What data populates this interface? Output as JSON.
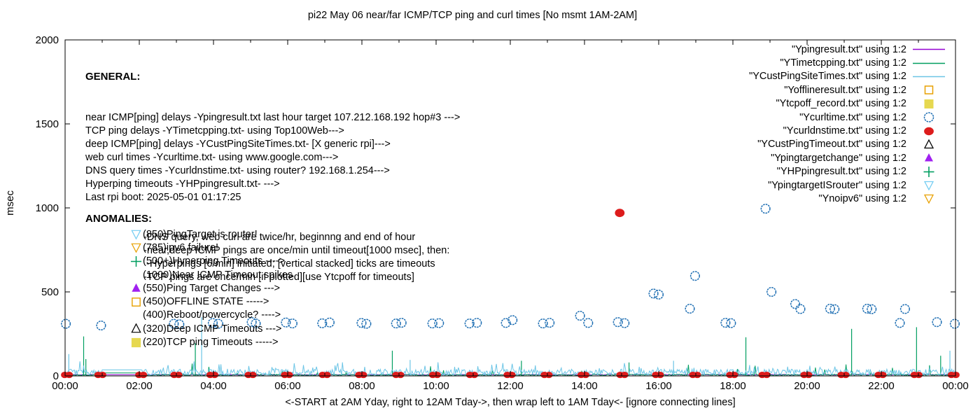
{
  "title": "pi22 May 06  near/far ICMP/TCP ping and curl times [No msmt 1AM-2AM]",
  "axes": {
    "y_label": "msec",
    "x_label": "<-START at 2AM Yday, right to 12AM Tday->, then wrap left to 1AM Tday<- [ignore connecting lines]",
    "y_ticks": [
      "0",
      "500",
      "1000",
      "1500",
      "2000"
    ],
    "y_tick_values": [
      0,
      500,
      1000,
      1500,
      2000
    ],
    "x_ticks": [
      "00:00",
      "02:00",
      "04:00",
      "06:00",
      "08:00",
      "10:00",
      "12:00",
      "14:00",
      "16:00",
      "18:00",
      "20:00",
      "22:00",
      "00:00"
    ],
    "x_tick_hours": [
      0,
      2,
      4,
      6,
      8,
      10,
      12,
      14,
      16,
      18,
      20,
      22,
      24
    ]
  },
  "general": {
    "heading": "GENERAL:",
    "lines": [
      "near ICMP[ping] delays -Ypingresult.txt last hour target 107.212.168.192 hop#3 --->",
      "TCP ping delays -YTimetcpping.txt- using Top100Web--->",
      "deep ICMP[ping] delays -YCustPingSiteTimes.txt- [X generic rpi]--->",
      "web curl times -Ycurltime.txt- using www.google.com--->",
      "DNS query times -Ycurldnstime.txt- using router? 192.168.1.254--->",
      "Hyperping timeouts -YHPpingresult.txt- --->",
      "Last rpi boot: 2025-05-01 01:17:25"
    ],
    "sub_lines": [
      "-DNS query, web curl are twice/hr, beginnng and end of hour",
      "-near,deep ICMP pings are once/min until timeout[1000 msec], then:",
      " -Hyperpings [6/min] initiated; [vertical stacked] ticks are timeouts",
      "-TCP pings are once/min [if plotted][use Ytcpoff for timeouts]"
    ]
  },
  "anomalies": {
    "heading": "ANOMALIES:",
    "items": [
      {
        "marker": "tri-down-open",
        "color": "#74cdf2",
        "value": 850,
        "label": "(850)PingTarget is router!"
      },
      {
        "marker": "tri-down-open",
        "color": "#e8a000",
        "value": 785,
        "label": "(785)ipv6 failure!"
      },
      {
        "marker": "plus",
        "color": "#009e60",
        "value": 500,
        "label": "(500+)Hyperping Timeouts ---->"
      },
      {
        "marker": "none",
        "color": "",
        "value": 1000,
        "label": "(1000)Near ICMP Timeout spikes"
      },
      {
        "marker": "tri-up-filled",
        "color": "#a020f0",
        "value": 550,
        "label": "(550)Ping Target Changes --->"
      },
      {
        "marker": "square-open",
        "color": "#e8a000",
        "value": 450,
        "label": "(450)OFFLINE STATE ----->"
      },
      {
        "marker": "none",
        "color": "",
        "value": 400,
        "label": "(400)Reboot/powercycle? ---->"
      },
      {
        "marker": "tri-up-open",
        "color": "#000000",
        "value": 320,
        "label": "(320)Deep ICMP Timeouts --->"
      },
      {
        "marker": "square-filled",
        "color": "#e6d850",
        "value": 220,
        "label": "(220)TCP ping Timeouts ----->"
      }
    ]
  },
  "legend": [
    {
      "label": "\"Ypingresult.txt\" using 1:2",
      "marker": "line",
      "color": "#9400d3"
    },
    {
      "label": "\"YTimetcpping.txt\" using 1:2",
      "marker": "line",
      "color": "#009e60"
    },
    {
      "label": "\"YCustPingSiteTimes.txt\" using 1:2",
      "marker": "line",
      "color": "#6cc5e6"
    },
    {
      "label": "\"Yofflineresult.txt\" using 1:2",
      "marker": "square-open",
      "color": "#e8a000"
    },
    {
      "label": "\"Ytcpoff_record.txt\" using 1:2",
      "marker": "square-filled",
      "color": "#e6d850"
    },
    {
      "label": "\"Ycurltime.txt\" using 1:2",
      "marker": "circle-open",
      "color": "#1c6db2"
    },
    {
      "label": "\"Ycurldnstime.txt\" using 1:2",
      "marker": "circle-filled",
      "color": "#dd1c1c"
    },
    {
      "label": "\"YCustPingTimeout.txt\" using 1:2",
      "marker": "tri-up-open",
      "color": "#000000"
    },
    {
      "label": "\"Ypingtargetchange\" using 1:2",
      "marker": "tri-up-filled",
      "color": "#a020f0"
    },
    {
      "label": "\"YHPpingresult.txt\" using 1:2",
      "marker": "plus",
      "color": "#009e60"
    },
    {
      "label": "\"YpingtargetISrouter\" using 1:2",
      "marker": "tri-down-open",
      "color": "#74cdf2"
    },
    {
      "label": "\"Ynoipv6\" using 1:2",
      "marker": "tri-down-open",
      "color": "#e8a000"
    }
  ],
  "colors": {
    "background": "#ffffff",
    "axis": "#000000",
    "curl_blue": "#1c6db2",
    "dns_red": "#dd1c1c",
    "custping_lightblue": "#6cc5e6",
    "tcp_green": "#009e60",
    "ping_purple": "#9400d3",
    "target_change_magenta": "#a020f0",
    "offline_orange": "#e8a000",
    "tcpoff_yellow": "#e6d850",
    "isrouter_cyan": "#74cdf2"
  },
  "chart_data": {
    "type": "line+scatter",
    "title": "pi22 May 06  near/far ICMP/TCP ping and curl times [No msmt 1AM-2AM]",
    "xlabel": "<-START at 2AM Yday, right to 12AM Tday->, then wrap left to 1AM Tday<- [ignore connecting lines]",
    "ylabel": "msec",
    "xlim_hours": [
      0,
      24
    ],
    "ylim": [
      0,
      2000
    ],
    "grid": false,
    "legend_position": "top-right",
    "no_measurement_gap_hours": [
      1.0,
      2.05
    ],
    "series": [
      {
        "name": "Ypingresult.txt",
        "type": "noise",
        "color": "#9400d3",
        "base": [
          5,
          9
        ],
        "burst_chance": 0,
        "burst_max": 0,
        "spikes": [],
        "gap_value": 7
      },
      {
        "name": "YTimetcpping.txt",
        "type": "noise",
        "color": "#009e60",
        "base": [
          2,
          10
        ],
        "burst_chance": 0.04,
        "burst_max": 70,
        "spikes": [
          [
            0.5,
            235
          ],
          [
            0.56,
            100
          ],
          [
            3.51,
            195
          ],
          [
            8.82,
            150
          ],
          [
            12.3,
            90
          ],
          [
            15.2,
            80
          ],
          [
            18.35,
            230
          ],
          [
            21.2,
            280
          ],
          [
            22.95,
            290
          ],
          [
            23.6,
            120
          ]
        ],
        "gap_value": 18
      },
      {
        "name": "YCustPingSiteTimes.txt",
        "type": "noise",
        "color": "#6cc5e6",
        "base": [
          3,
          40
        ],
        "burst_chance": 0.06,
        "burst_max": 55,
        "spikes": [
          [
            0.1,
            130
          ],
          [
            3.68,
            350
          ],
          [
            9.3,
            95
          ],
          [
            16.4,
            90
          ],
          [
            23.85,
            150
          ]
        ],
        "gap_value": 36
      },
      {
        "name": "Ycurldnstime.txt",
        "type": "scatter",
        "marker": "circle-filled",
        "color": "#dd1c1c",
        "cluster_value": 6,
        "cluster_hours": [
          0.05,
          0.95,
          2.05,
          3.0,
          3.97,
          5.0,
          5.98,
          7.0,
          7.98,
          8.98,
          9.97,
          10.97,
          11.98,
          12.98,
          13.97,
          15.02,
          15.98,
          16.98,
          17.98,
          18.85,
          19.98,
          20.98,
          21.98,
          22.95,
          23.95
        ],
        "outliers": [
          [
            14.95,
            970
          ]
        ]
      },
      {
        "name": "Ycurltime.txt",
        "type": "scatter",
        "marker": "circle-open",
        "color": "#1c6db2",
        "points": [
          [
            0.02,
            310
          ],
          [
            0.97,
            300
          ],
          [
            2.93,
            310
          ],
          [
            3.08,
            307
          ],
          [
            3.98,
            315
          ],
          [
            4.13,
            310
          ],
          [
            5.03,
            320
          ],
          [
            5.14,
            312
          ],
          [
            5.95,
            318
          ],
          [
            6.13,
            312
          ],
          [
            6.93,
            313
          ],
          [
            7.13,
            318
          ],
          [
            7.99,
            315
          ],
          [
            8.12,
            310
          ],
          [
            8.92,
            312
          ],
          [
            9.07,
            316
          ],
          [
            9.9,
            312
          ],
          [
            10.08,
            314
          ],
          [
            10.9,
            312
          ],
          [
            11.1,
            316
          ],
          [
            11.88,
            315
          ],
          [
            12.06,
            332
          ],
          [
            12.88,
            312
          ],
          [
            13.06,
            316
          ],
          [
            13.88,
            358
          ],
          [
            14.1,
            315
          ],
          [
            14.9,
            320
          ],
          [
            15.08,
            314
          ],
          [
            15.86,
            490
          ],
          [
            16.0,
            484
          ],
          [
            16.84,
            400
          ],
          [
            16.98,
            595
          ],
          [
            17.8,
            316
          ],
          [
            17.95,
            314
          ],
          [
            18.88,
            995
          ],
          [
            19.04,
            500
          ],
          [
            19.68,
            428
          ],
          [
            19.82,
            398
          ],
          [
            20.62,
            400
          ],
          [
            20.74,
            397
          ],
          [
            21.62,
            400
          ],
          [
            21.74,
            397
          ],
          [
            22.5,
            315
          ],
          [
            22.64,
            398
          ],
          [
            23.5,
            320
          ],
          [
            23.98,
            310
          ]
        ]
      }
    ]
  }
}
